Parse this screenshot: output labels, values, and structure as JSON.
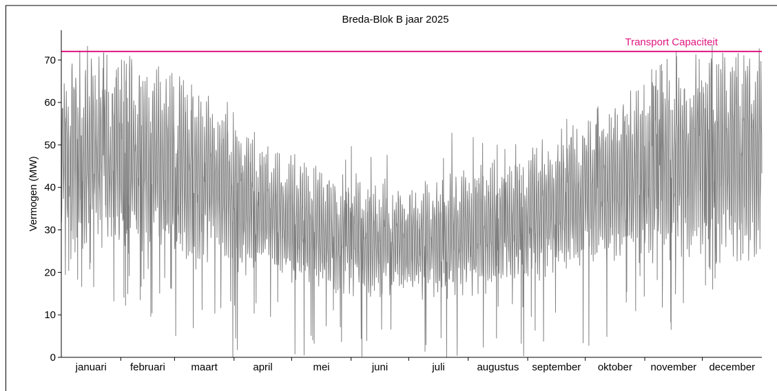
{
  "chart_data": {
    "type": "line",
    "title": "Breda-Blok B jaar 2025",
    "xlabel": "",
    "ylabel": "Vermogen (MW)",
    "ylim": [
      0,
      77
    ],
    "yticks": [
      0,
      10,
      20,
      30,
      40,
      50,
      60,
      70
    ],
    "xlim": [
      0,
      8760
    ],
    "x_unit": "hour of year 2025",
    "months": [
      {
        "label": "januari",
        "start": 0,
        "hours": 744
      },
      {
        "label": "februari",
        "start": 744,
        "hours": 672
      },
      {
        "label": "maart",
        "start": 1416,
        "hours": 744
      },
      {
        "label": "april",
        "start": 2160,
        "hours": 720
      },
      {
        "label": "mei",
        "start": 2880,
        "hours": 744
      },
      {
        "label": "juni",
        "start": 3624,
        "hours": 720
      },
      {
        "label": "juli",
        "start": 4344,
        "hours": 744
      },
      {
        "label": "augustus",
        "start": 5088,
        "hours": 744
      },
      {
        "label": "september",
        "start": 5832,
        "hours": 720
      },
      {
        "label": "oktober",
        "start": 6552,
        "hours": 744
      },
      {
        "label": "november",
        "start": 7296,
        "hours": 720
      },
      {
        "label": "december",
        "start": 8016,
        "hours": 744
      }
    ],
    "series": [
      {
        "name": "",
        "color": "#808080",
        "kind": "hourly_power",
        "monthly_envelope": [
          {
            "month": "januari",
            "min": 15,
            "typ_low": 32,
            "typ_high": 66,
            "max": 75
          },
          {
            "month": "februari",
            "min": 10,
            "typ_low": 31,
            "typ_high": 64,
            "max": 69
          },
          {
            "month": "maart",
            "min": 0,
            "typ_low": 27,
            "typ_high": 58,
            "max": 67
          },
          {
            "month": "april",
            "min": 0,
            "typ_low": 24,
            "typ_high": 47,
            "max": 54
          },
          {
            "month": "mei",
            "min": 0,
            "typ_low": 20,
            "typ_high": 40,
            "max": 46
          },
          {
            "month": "juni",
            "min": 0,
            "typ_low": 18,
            "typ_high": 38,
            "max": 55
          },
          {
            "month": "juli",
            "min": 0,
            "typ_low": 18,
            "typ_high": 38,
            "max": 54
          },
          {
            "month": "augustus",
            "min": 0,
            "typ_low": 20,
            "typ_high": 42,
            "max": 51
          },
          {
            "month": "september",
            "min": 0,
            "typ_low": 24,
            "typ_high": 48,
            "max": 59
          },
          {
            "month": "oktober",
            "min": 5,
            "typ_low": 28,
            "typ_high": 56,
            "max": 59
          },
          {
            "month": "november",
            "min": 6,
            "typ_low": 30,
            "typ_high": 64,
            "max": 73
          },
          {
            "month": "december",
            "min": 19,
            "typ_low": 30,
            "typ_high": 68,
            "max": 74
          }
        ]
      }
    ],
    "annotations": [
      {
        "type": "hline",
        "y": 72,
        "label": "Transport Capaciteit",
        "color": "#e0157f",
        "label_position": "top-right"
      }
    ],
    "grid": false,
    "legend": "none"
  }
}
